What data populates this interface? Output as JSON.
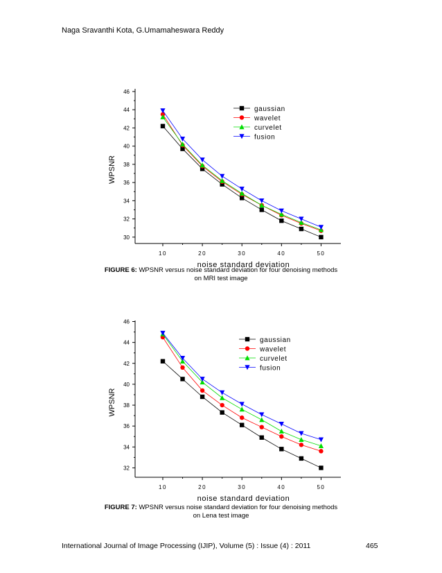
{
  "header": {
    "authors": "Naga Sravanthi Kota, G.Umamaheswara Reddy"
  },
  "footer": {
    "journal": "International Journal of Image Processing (IJIP), Volume (5) : Issue (4) : 2011",
    "page": "465"
  },
  "figures": [
    {
      "caption_label": "FIGURE 6:",
      "caption_line1": "WPSNR versus noise standard deviation for four denoising methods",
      "caption_line2": "on MRI test image"
    },
    {
      "caption_label": "FIGURE 7:",
      "caption_line1": "WPSNR versus noise standard deviation for four denoising methods",
      "caption_line2": "on Lena test image"
    }
  ],
  "chart_data": [
    {
      "type": "line",
      "xlabel": "noise standard deviation",
      "ylabel": "WPSNR",
      "x": [
        10,
        15,
        20,
        25,
        30,
        35,
        40,
        45,
        50
      ],
      "xticks": [
        10,
        20,
        30,
        40,
        50
      ],
      "yticks": [
        30,
        32,
        34,
        36,
        38,
        40,
        42,
        44,
        46
      ],
      "xlim": [
        3,
        55
      ],
      "ylim": [
        29.3,
        46.3
      ],
      "grid": false,
      "legend_position": "top-right",
      "series": [
        {
          "name": "gaussian",
          "color": "#000000",
          "marker": "square",
          "values": [
            42.2,
            39.7,
            37.5,
            35.8,
            34.3,
            33.0,
            31.8,
            30.9,
            30.0
          ]
        },
        {
          "name": "wavelet",
          "color": "#ff0000",
          "marker": "circle",
          "values": [
            43.5,
            40.1,
            37.8,
            36.1,
            34.7,
            33.5,
            32.4,
            31.5,
            30.7
          ]
        },
        {
          "name": "curvelet",
          "color": "#00dd00",
          "marker": "triangle-up",
          "values": [
            43.2,
            40.2,
            37.9,
            36.2,
            34.8,
            33.5,
            32.5,
            31.6,
            30.8
          ]
        },
        {
          "name": "fusion",
          "color": "#0000ff",
          "marker": "triangle-down",
          "values": [
            43.9,
            40.8,
            38.5,
            36.7,
            35.3,
            34.0,
            32.9,
            32.0,
            31.1
          ]
        }
      ]
    },
    {
      "type": "line",
      "xlabel": "noise standard deviation",
      "ylabel": "WPSNR",
      "x": [
        10,
        15,
        20,
        25,
        30,
        35,
        40,
        45,
        50
      ],
      "xticks": [
        10,
        20,
        30,
        40,
        50
      ],
      "yticks": [
        32,
        34,
        36,
        38,
        40,
        42,
        44,
        46
      ],
      "xlim": [
        3,
        55
      ],
      "ylim": [
        31.1,
        46.1
      ],
      "grid": false,
      "legend_position": "top-right",
      "series": [
        {
          "name": "gaussian",
          "color": "#000000",
          "marker": "square",
          "values": [
            42.2,
            40.5,
            38.8,
            37.3,
            36.1,
            34.9,
            33.8,
            32.9,
            32.0
          ]
        },
        {
          "name": "wavelet",
          "color": "#ff0000",
          "marker": "circle",
          "values": [
            44.5,
            41.6,
            39.4,
            38.0,
            36.8,
            35.9,
            35.0,
            34.2,
            33.6
          ]
        },
        {
          "name": "curvelet",
          "color": "#00dd00",
          "marker": "triangle-up",
          "values": [
            44.8,
            42.2,
            40.2,
            38.7,
            37.6,
            36.6,
            35.5,
            34.7,
            34.1
          ]
        },
        {
          "name": "fusion",
          "color": "#0000ff",
          "marker": "triangle-down",
          "values": [
            44.9,
            42.5,
            40.5,
            39.2,
            38.1,
            37.1,
            36.2,
            35.3,
            34.7
          ]
        }
      ]
    }
  ]
}
